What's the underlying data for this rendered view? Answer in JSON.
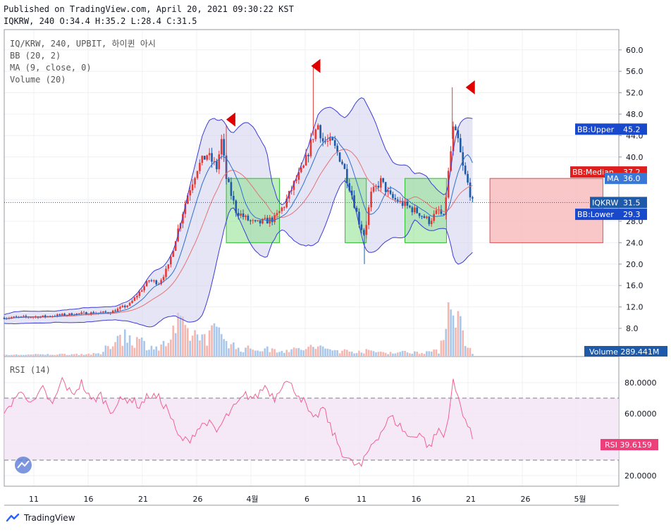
{
  "header": {
    "published": "Published on TradingView.com, April 20, 2021 09:30:22 KST",
    "ohlc": "IQKRW, 240 O:34.4 H:35.2 L:28.4 C:31.5"
  },
  "legend": {
    "symbol": "IQ/KRW, 240, UPBIT, 하이퀸 아시",
    "bb": "BB (20, 2)",
    "ma": "MA (9, close, 0)",
    "volume": "Volume (20)",
    "rsi": "RSI (14)"
  },
  "colors": {
    "up": "#e53935",
    "down": "#1e5aa8",
    "bb": "#3b3bd6",
    "bb_fill": "#cfd0ee",
    "ma": "#e57373",
    "rsi": "#f06292",
    "rsi_band": "#f3e3f5",
    "green_box": "#8be08b",
    "red_box": "#f8b9b9",
    "arrow": "#e00000",
    "vol_up": "#f4b6ae",
    "vol_down": "#a9c7ea"
  },
  "chart_data": {
    "type": "candlestick",
    "price_axis": {
      "ticks": [
        8.0,
        12.0,
        16.0,
        20.0,
        24.0,
        28.0,
        32.0,
        36.0,
        40.0,
        44.0,
        48.0,
        52.0,
        56.0,
        60.0
      ]
    },
    "rsi_axis": {
      "ticks": [
        "20.0000",
        "40.0000",
        "60.0000",
        "80.0000"
      ],
      "bands": [
        30,
        70
      ]
    },
    "x_axis": {
      "ticks": [
        "11",
        "16",
        "21",
        "26",
        "4월",
        "6",
        "11",
        "16",
        "21",
        "26",
        "5월"
      ]
    },
    "price_labels": [
      {
        "name": "BB:Upper",
        "value": "45.2",
        "num": 45.2,
        "color": "#1848cc"
      },
      {
        "name": "BB:Median",
        "value": "37.2",
        "num": 37.2,
        "color": "#e01e1e"
      },
      {
        "name": "MA",
        "value": "36.0",
        "num": 36.0,
        "color": "#3a78d8"
      },
      {
        "name": "IQKRW",
        "value": "31.5",
        "num": 31.5,
        "color": "#1e5aa8"
      },
      {
        "name": "BB:Lower",
        "value": "29.3",
        "num": 29.3,
        "color": "#1848cc"
      }
    ],
    "volume_label": {
      "name": "Volume",
      "value": "289.441M"
    },
    "rsi_label": {
      "name": "RSI",
      "value": "39.6159"
    },
    "last_close": 31.5,
    "price_path": [
      [
        0,
        10.0
      ],
      [
        4,
        10.2
      ],
      [
        8,
        10.8
      ],
      [
        11,
        11.0
      ],
      [
        13,
        12.5
      ],
      [
        15,
        17.0
      ],
      [
        16,
        16.5
      ],
      [
        17,
        19.5
      ],
      [
        18,
        26.5
      ],
      [
        19,
        33.0
      ],
      [
        20,
        38.0
      ],
      [
        21,
        40.5
      ],
      [
        22,
        38.0
      ],
      [
        22.5,
        43.0
      ],
      [
        23,
        36.0
      ],
      [
        24,
        30.0
      ],
      [
        25,
        28.5
      ],
      [
        26,
        27.5
      ],
      [
        27,
        28.0
      ],
      [
        28,
        28.5
      ],
      [
        29,
        31.0
      ],
      [
        30,
        35.0
      ],
      [
        31,
        38.0
      ],
      [
        32,
        44.0
      ],
      [
        32.5,
        46.0
      ],
      [
        33,
        43.0
      ],
      [
        34,
        42.5
      ],
      [
        35,
        39.0
      ],
      [
        36,
        33.0
      ],
      [
        36.8,
        27.5
      ],
      [
        37.3,
        25.5
      ],
      [
        38,
        33.0
      ],
      [
        39,
        35.5
      ],
      [
        40,
        32.5
      ],
      [
        41,
        31.5
      ],
      [
        42,
        30.5
      ],
      [
        43,
        29.5
      ],
      [
        44,
        28.0
      ],
      [
        45,
        30.0
      ],
      [
        45.5,
        28.5
      ],
      [
        46,
        37.0
      ],
      [
        46.5,
        45.0
      ],
      [
        47,
        43.0
      ],
      [
        47.5,
        38.0
      ],
      [
        48,
        35.0
      ],
      [
        48.5,
        31.5
      ]
    ],
    "tall_wicks": [
      [
        32.0,
        57.0
      ],
      [
        46.4,
        53.0
      ],
      [
        23,
        46.0
      ],
      [
        37.3,
        20.0
      ]
    ],
    "volume_path": [
      [
        0,
        0.2
      ],
      [
        10,
        0.4
      ],
      [
        12,
        4.5
      ],
      [
        16,
        1.5
      ],
      [
        17,
        3
      ],
      [
        18,
        6
      ],
      [
        20,
        4
      ],
      [
        22.5,
        5
      ],
      [
        24,
        1.5
      ],
      [
        30,
        1.2
      ],
      [
        32,
        1.8
      ],
      [
        35,
        1.0
      ],
      [
        37,
        1.0
      ],
      [
        40,
        0.7
      ],
      [
        45,
        0.9
      ],
      [
        46,
        10.0
      ],
      [
        46.6,
        13.5
      ],
      [
        47,
        7.5
      ],
      [
        48,
        2.0
      ],
      [
        48.5,
        0.8
      ]
    ],
    "rsi_path": [
      [
        0,
        58
      ],
      [
        1,
        70
      ],
      [
        2,
        74
      ],
      [
        3,
        66
      ],
      [
        4,
        76
      ],
      [
        5,
        65
      ],
      [
        6,
        82
      ],
      [
        7,
        72
      ],
      [
        8,
        80
      ],
      [
        9,
        68
      ],
      [
        10,
        72
      ],
      [
        11,
        62
      ],
      [
        12,
        68
      ],
      [
        13,
        70
      ],
      [
        14,
        65
      ],
      [
        15,
        72
      ],
      [
        16,
        70
      ],
      [
        17,
        62
      ],
      [
        18,
        45
      ],
      [
        19,
        42
      ],
      [
        20,
        50
      ],
      [
        21,
        55
      ],
      [
        22,
        48
      ],
      [
        23,
        58
      ],
      [
        24,
        65
      ],
      [
        25,
        72
      ],
      [
        26,
        70
      ],
      [
        27,
        78
      ],
      [
        28,
        70
      ],
      [
        29,
        82
      ],
      [
        30,
        76
      ],
      [
        31,
        68
      ],
      [
        32,
        55
      ],
      [
        33,
        64
      ],
      [
        34,
        48
      ],
      [
        35,
        35
      ],
      [
        36,
        28
      ],
      [
        37,
        26
      ],
      [
        38,
        40
      ],
      [
        39,
        48
      ],
      [
        40,
        58
      ],
      [
        41,
        52
      ],
      [
        42,
        44
      ],
      [
        43,
        48
      ],
      [
        44,
        38
      ],
      [
        45,
        50
      ],
      [
        45.6,
        44
      ],
      [
        46.5,
        80
      ],
      [
        47,
        70
      ],
      [
        48,
        52
      ],
      [
        48.5,
        44
      ]
    ],
    "green_boxes": [
      [
        23,
        28.5,
        24,
        36
      ],
      [
        35.3,
        37.5,
        24,
        36
      ],
      [
        41.5,
        45.8,
        24,
        36
      ]
    ],
    "red_box": [
      50.3,
      62,
      24,
      36
    ],
    "arrows": [
      [
        23.5,
        47
      ],
      [
        32.3,
        57
      ],
      [
        48.3,
        53
      ]
    ]
  }
}
